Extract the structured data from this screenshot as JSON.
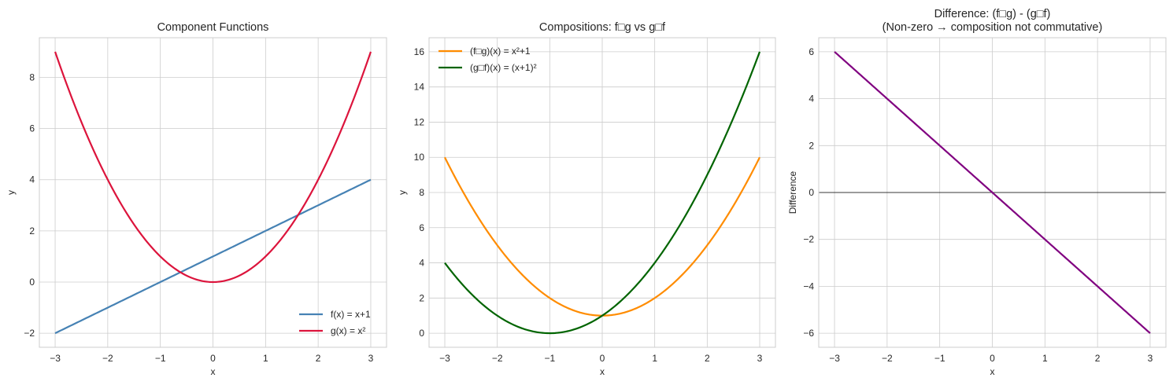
{
  "chart_data": [
    {
      "type": "line",
      "title": "Component Functions",
      "xlabel": "x",
      "ylabel": "y",
      "xlim": [
        -3.3,
        3.3
      ],
      "ylim": [
        -2.55,
        9.55
      ],
      "xticks": [
        -3,
        -2,
        -1,
        0,
        1,
        2,
        3
      ],
      "yticks": [
        -2,
        0,
        2,
        4,
        6,
        8
      ],
      "grid": true,
      "legend_position": "lower right",
      "series": [
        {
          "name": "f(x) = x+1",
          "color": "#4682b4",
          "expr": "x+1",
          "x_range": [
            -3,
            3
          ],
          "values_at_ticks": [
            -2,
            -1,
            0,
            1,
            2,
            3,
            4
          ]
        },
        {
          "name": "g(x) = x²",
          "color": "#dc143c",
          "expr": "x^2",
          "x_range": [
            -3,
            3
          ],
          "values_at_ticks": [
            9,
            4,
            1,
            0,
            1,
            4,
            9
          ]
        }
      ]
    },
    {
      "type": "line",
      "title": "Compositions: f□g vs g□f",
      "xlabel": "x",
      "ylabel": "y",
      "xlim": [
        -3.3,
        3.3
      ],
      "ylim": [
        -0.8,
        16.8
      ],
      "xticks": [
        -3,
        -2,
        -1,
        0,
        1,
        2,
        3
      ],
      "yticks": [
        0,
        2,
        4,
        6,
        8,
        10,
        12,
        14,
        16
      ],
      "grid": true,
      "legend_position": "upper left",
      "series": [
        {
          "name": "(f□g)(x) = x²+1",
          "color": "#ff8c00",
          "expr": "x^2+1",
          "x_range": [
            -3,
            3
          ],
          "values_at_ticks": [
            10,
            5,
            2,
            1,
            2,
            5,
            10
          ]
        },
        {
          "name": "(g□f)(x) = (x+1)²",
          "color": "#006400",
          "expr": "(x+1)^2",
          "x_range": [
            -3,
            3
          ],
          "values_at_ticks": [
            4,
            1,
            0,
            1,
            4,
            9,
            16
          ]
        }
      ]
    },
    {
      "type": "line",
      "title": "Difference: (f□g) - (g□f)\n(Non-zero → composition not commutative)",
      "xlabel": "x",
      "ylabel": "Difference",
      "xlim": [
        -3.3,
        3.3
      ],
      "ylim": [
        -6.6,
        6.6
      ],
      "xticks": [
        -3,
        -2,
        -1,
        0,
        1,
        2,
        3
      ],
      "yticks": [
        -6,
        -4,
        -2,
        0,
        2,
        4,
        6
      ],
      "grid": true,
      "annotations": [
        "horizontal black line at y=0"
      ],
      "series": [
        {
          "name": "difference",
          "color": "#800080",
          "expr": "-2x",
          "x_range": [
            -3,
            3
          ],
          "values_at_ticks": [
            6,
            4,
            2,
            0,
            -2,
            -4,
            -6
          ]
        }
      ]
    }
  ],
  "panels": [
    {
      "title_lines": [
        "Component Functions"
      ],
      "xlabel": "x",
      "ylabel": "y",
      "xtick_labels": [
        "−3",
        "−2",
        "−1",
        "0",
        "1",
        "2",
        "3"
      ],
      "ytick_labels": [
        "−2",
        "0",
        "2",
        "4",
        "6",
        "8"
      ],
      "legend": [
        "f(x) = x+1",
        "g(x) = x²"
      ]
    },
    {
      "title_lines": [
        "Compositions: f□g vs g□f"
      ],
      "xlabel": "x",
      "ylabel": "y",
      "xtick_labels": [
        "−3",
        "−2",
        "−1",
        "0",
        "1",
        "2",
        "3"
      ],
      "ytick_labels": [
        "0",
        "2",
        "4",
        "6",
        "8",
        "10",
        "12",
        "14",
        "16"
      ],
      "legend": [
        "(f□g)(x) = x²+1",
        "(g□f)(x) = (x+1)²"
      ]
    },
    {
      "title_lines": [
        "Difference: (f□g) - (g□f)",
        "(Non-zero → composition not commutative)"
      ],
      "xlabel": "x",
      "ylabel": "Difference",
      "xtick_labels": [
        "−3",
        "−2",
        "−1",
        "0",
        "1",
        "2",
        "3"
      ],
      "ytick_labels": [
        "−6",
        "−4",
        "−2",
        "0",
        "2",
        "4",
        "6"
      ],
      "legend": []
    }
  ],
  "colors": {
    "f": "#4682b4",
    "g": "#dc143c",
    "fog": "#ff8c00",
    "gof": "#006400",
    "diff": "#800080",
    "grid": "#cccccc",
    "spine": "#cccccc"
  }
}
